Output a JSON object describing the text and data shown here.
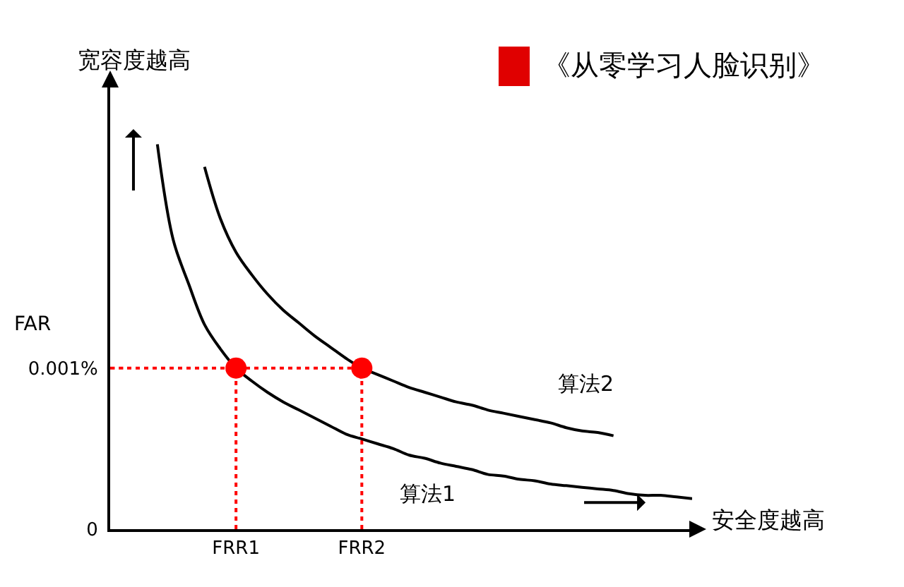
{
  "chart_data": {
    "type": "line",
    "title": "《从零学习人脸识别》",
    "xlabel": "安全度越高",
    "ylabel": "宽容度越高",
    "annotations": [
      "FAR"
    ],
    "categories": [
      null,
      null,
      null,
      null,
      null,
      null,
      null,
      null,
      "FRR1",
      null,
      null,
      null,
      null,
      null,
      null,
      null,
      "FRR2",
      null,
      null,
      null,
      null,
      null,
      null,
      null,
      null,
      null,
      null,
      null,
      null,
      null,
      null,
      null,
      null,
      null,
      null,
      null,
      null,
      null
    ],
    "ylim": [
      0,
      0.00276
    ],
    "yticks": [
      {
        "value": 0,
        "label": "0"
      },
      {
        "value": 0.001,
        "label": "0.001%"
      }
    ],
    "grid": false,
    "legend": false,
    "series": [
      {
        "name": "算法1",
        "color": "#000000",
        "line_style": "solid",
        "values": [
          null,
          null,
          null,
          0.00239,
          0.0018,
          0.00152,
          0.00127,
          0.00112,
          0.001,
          0.00092,
          0.00085,
          0.00079,
          0.00074,
          0.00069,
          0.00064,
          0.00059,
          0.00056,
          0.00053,
          0.0005,
          0.00046,
          0.00044,
          0.00041,
          0.00039,
          0.00037,
          0.00034,
          0.00033,
          0.00031,
          0.0003,
          0.00028,
          0.00027,
          0.00026,
          0.00025,
          0.00024,
          0.00022,
          0.00021,
          0.00021,
          0.0002,
          0.00019
        ]
      },
      {
        "name": "算法2",
        "color": "#000000",
        "line_style": "solid",
        "values": [
          null,
          null,
          null,
          null,
          null,
          null,
          0.00225,
          0.00193,
          0.00172,
          0.00158,
          0.00146,
          0.00136,
          0.00128,
          0.0012,
          0.00113,
          0.00106,
          0.001,
          0.00096,
          0.00092,
          0.00088,
          0.00085,
          0.00082,
          0.00079,
          0.00077,
          0.00074,
          0.00072,
          0.0007,
          0.00068,
          0.00066,
          0.00063,
          0.00061,
          0.0006,
          0.00058,
          null,
          null,
          null,
          null,
          null
        ]
      },
      {
        "color": "#ff0000",
        "line_style": "dotted",
        "values": [
          0.001,
          0.001,
          0.001,
          0.001,
          0.001,
          0.001,
          0.001,
          0.001,
          0.001,
          0.001,
          0.001,
          0.001,
          0.001,
          0.001,
          0.001,
          0.001,
          0.001,
          null,
          null,
          null,
          null,
          null,
          null,
          null,
          null,
          null,
          null,
          null,
          null,
          null,
          null,
          null,
          null,
          null,
          null,
          null,
          null,
          null
        ]
      },
      {
        "type": "scatter",
        "color": "#ff0000",
        "marker": "circle",
        "line_style": "dotted",
        "values": [
          null,
          null,
          null,
          null,
          null,
          null,
          null,
          null,
          0.001,
          null,
          null,
          null,
          null,
          null,
          null,
          null,
          0.001,
          null,
          null,
          null,
          null,
          null,
          null,
          null,
          null,
          null,
          null,
          null,
          null,
          null,
          null,
          null,
          null,
          null,
          null,
          null,
          null,
          null
        ],
        "errors": [
          null,
          null,
          null,
          null,
          null,
          null,
          null,
          null,
          [
            0,
            0.001
          ],
          null,
          null,
          null,
          null,
          null,
          null,
          null,
          [
            0,
            0.001
          ],
          null,
          null,
          null,
          null,
          null,
          null,
          null,
          null,
          null,
          null,
          null,
          null,
          null,
          null,
          null,
          null,
          null,
          null,
          null,
          null,
          null
        ]
      }
    ]
  }
}
